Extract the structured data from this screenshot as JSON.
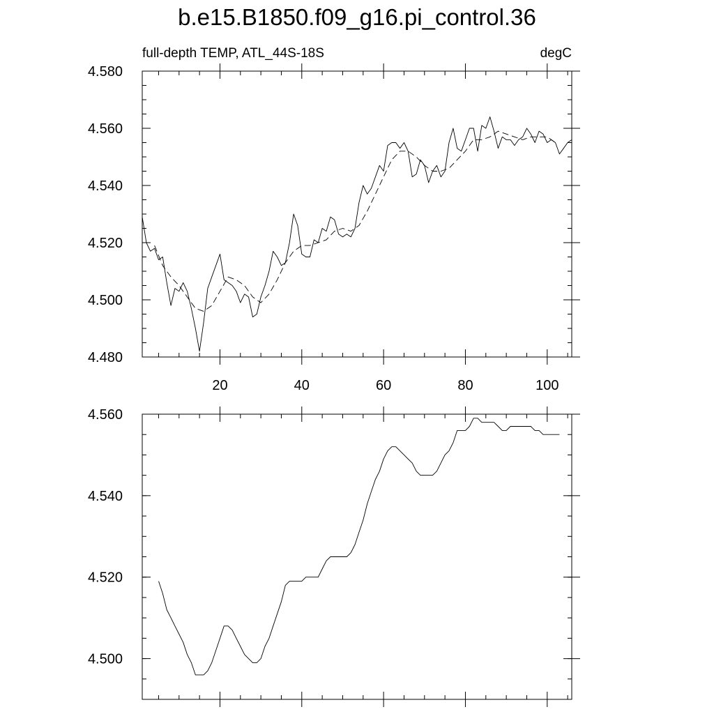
{
  "title": "b.e15.B1850.f09_g16.pi_control.36",
  "chart_data": [
    {
      "type": "line",
      "subtitle_left": "full-depth TEMP, ATL_44S-18S",
      "subtitle_right": "degC",
      "xlim": [
        1,
        106
      ],
      "ylim": [
        4.48,
        4.58
      ],
      "x_ticks": [
        20,
        40,
        60,
        80,
        100
      ],
      "x_tick_labels": [
        "20",
        "40",
        "60",
        "80",
        "100"
      ],
      "y_ticks": [
        4.48,
        4.5,
        4.52,
        4.54,
        4.56,
        4.58
      ],
      "y_tick_labels": [
        "4.480",
        "4.500",
        "4.520",
        "4.540",
        "4.560",
        "4.580"
      ],
      "series": [
        {
          "style": "solid",
          "x": [
            1,
            2,
            3,
            4,
            5,
            6,
            7,
            8,
            9,
            10,
            11,
            12,
            13,
            14,
            15,
            16,
            17,
            18,
            19,
            20,
            21,
            22,
            23,
            24,
            25,
            26,
            27,
            28,
            29,
            30,
            31,
            32,
            33,
            34,
            35,
            36,
            37,
            38,
            39,
            40,
            41,
            42,
            43,
            44,
            45,
            46,
            47,
            48,
            49,
            50,
            51,
            52,
            53,
            54,
            55,
            56,
            57,
            58,
            59,
            60,
            61,
            62,
            63,
            64,
            65,
            66,
            67,
            68,
            69,
            70,
            71,
            72,
            73,
            74,
            75,
            76,
            77,
            78,
            79,
            80,
            81,
            82,
            83,
            84,
            85,
            86,
            87,
            88,
            89,
            90,
            91,
            92,
            93,
            94,
            95,
            96,
            97,
            98,
            99,
            100,
            101,
            102,
            103,
            104,
            105,
            106
          ],
          "values": [
            4.529,
            4.52,
            4.517,
            4.518,
            4.514,
            4.515,
            4.506,
            4.498,
            4.504,
            4.503,
            4.506,
            4.503,
            4.497,
            4.49,
            4.482,
            4.492,
            4.504,
            4.508,
            4.512,
            4.516,
            4.507,
            4.506,
            4.505,
            4.503,
            4.499,
            4.502,
            4.501,
            4.494,
            4.495,
            4.501,
            4.505,
            4.51,
            4.517,
            4.515,
            4.512,
            4.513,
            4.52,
            4.53,
            4.526,
            4.516,
            4.515,
            4.515,
            4.521,
            4.52,
            4.525,
            4.524,
            4.529,
            4.528,
            4.523,
            4.522,
            4.523,
            4.522,
            4.525,
            4.534,
            4.54,
            4.537,
            4.539,
            4.543,
            4.547,
            4.545,
            4.554,
            4.555,
            4.555,
            4.553,
            4.555,
            4.552,
            4.543,
            4.544,
            4.549,
            4.547,
            4.541,
            4.545,
            4.547,
            4.543,
            4.545,
            4.555,
            4.56,
            4.553,
            4.552,
            4.556,
            4.56,
            4.56,
            4.552,
            4.561,
            4.56,
            4.564,
            4.559,
            4.553,
            4.557,
            4.556,
            4.556,
            4.554,
            4.556,
            4.557,
            4.56,
            4.558,
            4.555,
            4.559,
            4.558,
            4.555,
            4.556,
            4.555,
            4.551,
            4.553,
            4.555,
            4.556
          ]
        },
        {
          "style": "dashed",
          "x": [
            4,
            6,
            8,
            10,
            12,
            14,
            16,
            18,
            20,
            22,
            24,
            26,
            28,
            30,
            32,
            34,
            36,
            38,
            40,
            42,
            44,
            46,
            48,
            50,
            52,
            54,
            56,
            58,
            60,
            62,
            64,
            66,
            68,
            70,
            72,
            74,
            76,
            78,
            80,
            82,
            84,
            86,
            88,
            90,
            92,
            94,
            96,
            98,
            100,
            102
          ],
          "values": [
            4.519,
            4.512,
            4.508,
            4.505,
            4.501,
            4.497,
            4.496,
            4.498,
            4.503,
            4.508,
            4.507,
            4.505,
            4.501,
            4.499,
            4.502,
            4.507,
            4.513,
            4.517,
            4.519,
            4.519,
            4.52,
            4.521,
            4.524,
            4.525,
            4.524,
            4.526,
            4.531,
            4.537,
            4.543,
            4.549,
            4.552,
            4.552,
            4.55,
            4.547,
            4.545,
            4.545,
            4.546,
            4.549,
            4.552,
            4.556,
            4.556,
            4.557,
            4.559,
            4.558,
            4.557,
            4.556,
            4.557,
            4.557,
            4.557,
            4.555
          ]
        }
      ]
    },
    {
      "type": "line",
      "xlim": [
        1,
        106
      ],
      "ylim": [
        4.49,
        4.56
      ],
      "x_ticks": [
        20,
        40,
        60,
        80,
        100
      ],
      "y_ticks": [
        4.5,
        4.52,
        4.54,
        4.56
      ],
      "y_tick_labels": [
        "4.500",
        "4.520",
        "4.540",
        "4.560"
      ],
      "series": [
        {
          "style": "solid",
          "x": [
            5,
            6,
            7,
            8,
            9,
            10,
            11,
            12,
            13,
            14,
            15,
            16,
            17,
            18,
            19,
            20,
            21,
            22,
            23,
            24,
            25,
            26,
            27,
            28,
            29,
            30,
            31,
            32,
            33,
            34,
            35,
            36,
            37,
            38,
            39,
            40,
            41,
            42,
            43,
            44,
            45,
            46,
            47,
            48,
            49,
            50,
            51,
            52,
            53,
            54,
            55,
            56,
            57,
            58,
            59,
            60,
            61,
            62,
            63,
            64,
            65,
            66,
            67,
            68,
            69,
            70,
            71,
            72,
            73,
            74,
            75,
            76,
            77,
            78,
            79,
            80,
            81,
            82,
            83,
            84,
            85,
            86,
            87,
            88,
            89,
            90,
            91,
            92,
            93,
            94,
            95,
            96,
            97,
            98,
            99,
            100,
            101,
            102,
            103
          ],
          "values": [
            4.519,
            4.516,
            4.512,
            4.51,
            4.508,
            4.506,
            4.504,
            4.501,
            4.499,
            4.496,
            4.496,
            4.496,
            4.497,
            4.499,
            4.502,
            4.505,
            4.508,
            4.508,
            4.507,
            4.505,
            4.503,
            4.501,
            4.5,
            4.499,
            4.499,
            4.5,
            4.503,
            4.505,
            4.508,
            4.511,
            4.514,
            4.518,
            4.519,
            4.519,
            4.519,
            4.519,
            4.52,
            4.52,
            4.52,
            4.52,
            4.522,
            4.524,
            4.525,
            4.525,
            4.525,
            4.525,
            4.525,
            4.526,
            4.528,
            4.531,
            4.534,
            4.538,
            4.541,
            4.544,
            4.546,
            4.549,
            4.551,
            4.552,
            4.552,
            4.551,
            4.55,
            4.549,
            4.548,
            4.546,
            4.545,
            4.545,
            4.545,
            4.545,
            4.546,
            4.548,
            4.55,
            4.551,
            4.553,
            4.556,
            4.556,
            4.556,
            4.557,
            4.559,
            4.559,
            4.558,
            4.558,
            4.558,
            4.558,
            4.557,
            4.556,
            4.556,
            4.557,
            4.557,
            4.557,
            4.557,
            4.557,
            4.557,
            4.556,
            4.556,
            4.555,
            4.555,
            4.555,
            4.555,
            4.555
          ]
        }
      ]
    }
  ]
}
